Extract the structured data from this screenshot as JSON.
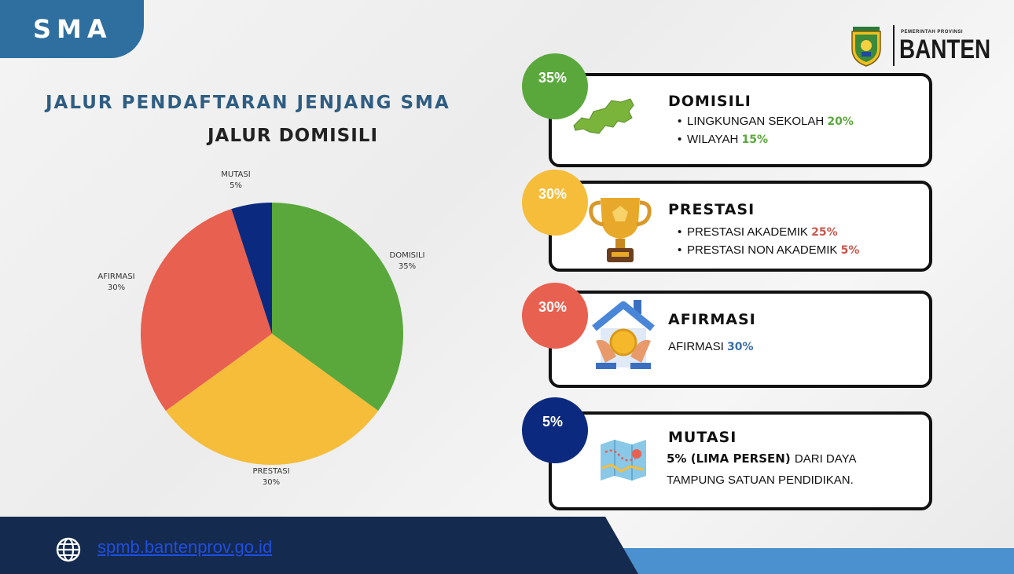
{
  "header": {
    "tab_label": "SMA"
  },
  "logo": {
    "small_text": "PEMERINTAH PROVINSI",
    "big_text": "BANTEN",
    "emblem_text": "BANTEN"
  },
  "title": "JALUR PENDAFTARAN JENJANG SMA",
  "subtitle": "JALUR DOMISILI",
  "chart_data": {
    "type": "pie",
    "slices": [
      {
        "label": "DOMISILI",
        "value": 35,
        "value_label": "35%",
        "color": "#5aa83c"
      },
      {
        "label": "PRESTASI",
        "value": 30,
        "value_label": "30%",
        "color": "#f5bd3a"
      },
      {
        "label": "AFIRMASI",
        "value": 30,
        "value_label": "30%",
        "color": "#e8604f"
      },
      {
        "label": "MUTASI",
        "value": 5,
        "value_label": "5%",
        "color": "#0b2a7f"
      }
    ]
  },
  "cards": [
    {
      "badge": "35%",
      "badge_color": "#5aa83c",
      "icon": "map-icon",
      "title": "DOMISILI",
      "lines": [
        {
          "bullet": true,
          "text": "LINGKUNGAN SEKOLAH",
          "pct": "20%",
          "pct_color": "#5aa83c"
        },
        {
          "bullet": true,
          "text": "WILAYAH",
          "pct": "15%",
          "pct_color": "#5aa83c"
        }
      ]
    },
    {
      "badge": "30%",
      "badge_color": "#f5bd3a",
      "icon": "trophy-icon",
      "title": "PRESTASI",
      "lines": [
        {
          "bullet": true,
          "text": "PRESTASI AKADEMIK",
          "pct": "25%",
          "pct_color": "#c9574c"
        },
        {
          "bullet": true,
          "text": "PRESTASI NON AKADEMIK",
          "pct": "5%",
          "pct_color": "#c9574c"
        }
      ]
    },
    {
      "badge": "30%",
      "badge_color": "#e8604f",
      "icon": "house-coin-icon",
      "title": "AFIRMASI",
      "lines": [
        {
          "bullet": false,
          "text": "AFIRMASI",
          "pct": "30%",
          "pct_color": "#3a6fa8"
        }
      ]
    },
    {
      "badge": "5%",
      "badge_color": "#0b2a7f",
      "icon": "route-map-icon",
      "title": "MUTASI",
      "lines": [
        {
          "bullet": false,
          "bold": "5% (LIMA PERSEN)",
          "text": "DARI DAYA"
        },
        {
          "bullet": false,
          "text": "TAMPUNG SATUAN PENDIDIKAN."
        }
      ]
    }
  ],
  "footer": {
    "url": "spmb.bantenprov.go.id"
  },
  "colors": {
    "tab": "#2f6f9f",
    "heading": "#2f5d82",
    "footer_dark": "#142a4e",
    "footer_light": "#4b90cf"
  }
}
